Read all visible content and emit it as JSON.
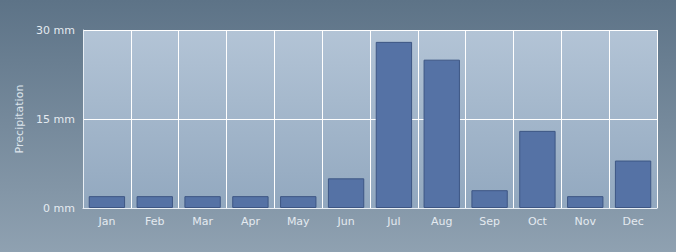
{
  "chart_data": {
    "type": "bar",
    "y_label": "Precipitation",
    "categories": [
      "Jan",
      "Feb",
      "Mar",
      "Apr",
      "May",
      "Jun",
      "Jul",
      "Aug",
      "Sep",
      "Oct",
      "Nov",
      "Dec"
    ],
    "values": [
      2,
      2,
      2,
      2,
      2,
      5,
      28,
      25,
      3,
      13,
      2,
      8
    ],
    "color": "#5572a5",
    "ylim": [
      0,
      30
    ],
    "yticks": [
      {
        "value": 0,
        "label": "0 mm"
      },
      {
        "value": 15,
        "label": "15 mm"
      },
      {
        "value": 30,
        "label": "30 mm"
      }
    ],
    "grid": true
  }
}
